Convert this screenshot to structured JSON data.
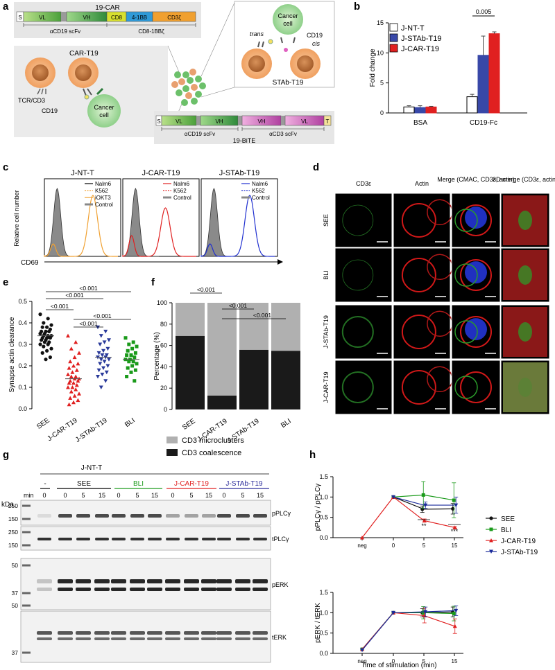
{
  "panels": {
    "a": {
      "letter": "a",
      "car_title": "19-CAR",
      "car_segments": [
        "S",
        "VL",
        "VH",
        "CD8",
        "4-1BB",
        "CD3ζ"
      ],
      "car_spans": [
        "αCD19 scFv",
        "CD8-1BBζ"
      ],
      "car_cell_title": "CAR-T19",
      "tcr_label": "TCR/CD3",
      "cd19_label": "CD19",
      "cancer_label": [
        "Cancer",
        "cell"
      ],
      "inset_trans": "trans",
      "inset_cis": "cis",
      "inset_cd19": "CD19",
      "inset_cancer": [
        "Cancer",
        "cell"
      ],
      "stab_title": "STAb-T19",
      "bite_segments": [
        "S",
        "VL",
        "VH",
        "VH",
        "VL",
        "T"
      ],
      "bite_spans": [
        "αCD19 scFv",
        "αCD3 scFv"
      ],
      "bite_title": "19-BiTE"
    },
    "b": {
      "letter": "b",
      "pvalue": "0.005"
    },
    "c": {
      "letter": "c",
      "ylabel": "Relative cell number",
      "xlabel": "CD69",
      "plots": [
        {
          "title": "J-NT-T",
          "legend": [
            "Nalm6",
            "K562",
            "iOKT3",
            "Control"
          ],
          "color": "#f0a030"
        },
        {
          "title": "J-CAR-T19",
          "legend": [
            "Nalm6",
            "K562",
            "Control"
          ],
          "color": "#e02020"
        },
        {
          "title": "J-STAb-T19",
          "legend": [
            "Nalm6",
            "K562",
            "Control"
          ],
          "color": "#2030d0"
        }
      ]
    },
    "d": {
      "letter": "d",
      "columns": [
        "CD3ε",
        "Actin",
        "Merge (CMAC, CD3ε, actin)",
        "3D merge (CD3ε, actin)"
      ],
      "rows": [
        "SEE",
        "BLI",
        "J-STAb-T19",
        "J-CAR-T19"
      ]
    },
    "e": {
      "letter": "e",
      "pvals": [
        "<0.001",
        "<0.001",
        "<0.001",
        "<0.001",
        "<0.001"
      ]
    },
    "f": {
      "letter": "f",
      "pvals": [
        "<0.001",
        "<0.001",
        "<0.001"
      ],
      "legend": [
        "CD3 microclusters",
        "CD3 coalescence"
      ]
    },
    "g": {
      "letter": "g",
      "group_title": "J-NT-T",
      "groups": [
        "-",
        "SEE",
        "BLI",
        "J-CAR-T19",
        "J-STAb-T19"
      ],
      "lane_times": [
        "0",
        "0",
        "5",
        "15",
        "0",
        "5",
        "15",
        "0",
        "5",
        "15",
        "0",
        "5",
        "15"
      ],
      "kda": "kDa",
      "min": "min",
      "markers": [
        {
          "blot": 0,
          "values": [
            "250",
            "150"
          ]
        },
        {
          "blot": 1,
          "values": [
            "250",
            "150"
          ]
        },
        {
          "blot": 2,
          "values": [
            "50",
            "37"
          ]
        },
        {
          "blot": 3,
          "values": [
            "50",
            "37"
          ]
        }
      ],
      "blots": [
        "pPLCγ",
        "tPLCγ",
        "pERK",
        "tERK"
      ]
    },
    "h": {
      "letter": "h",
      "sig": [
        "**",
        "***"
      ]
    }
  },
  "chart_data": [
    {
      "type": "bar",
      "panel": "b",
      "categories": [
        "BSA",
        "CD19-Fc"
      ],
      "series": [
        {
          "name": "J-NT-T",
          "values": [
            1.0,
            2.7
          ],
          "errors": [
            0.2,
            0.4
          ],
          "color": "#ffffff"
        },
        {
          "name": "J-STAb-T19",
          "values": [
            0.9,
            9.6
          ],
          "errors": [
            0.3,
            3.2
          ],
          "color": "#3848a8"
        },
        {
          "name": "J-CAR-T19",
          "values": [
            1.0,
            13.2
          ],
          "errors": [
            0.1,
            0.3
          ],
          "color": "#e02020"
        }
      ],
      "ylabel": "Fold change",
      "ylim": [
        0,
        15
      ],
      "yticks": [
        0,
        5,
        10,
        15
      ]
    },
    {
      "type": "scatter",
      "panel": "e",
      "categories": [
        "SEE",
        "J-CAR-T19",
        "J-STAb-T19",
        "BLI"
      ],
      "ylabel": "Synapse actin clearance",
      "ylim": [
        0.0,
        0.5
      ],
      "yticks": [
        0.0,
        0.1,
        0.2,
        0.3,
        0.4,
        0.5
      ],
      "medians": [
        0.34,
        0.14,
        0.24,
        0.23
      ],
      "points": [
        [
          0.44,
          0.42,
          0.4,
          0.39,
          0.38,
          0.38,
          0.37,
          0.36,
          0.36,
          0.36,
          0.35,
          0.35,
          0.34,
          0.34,
          0.34,
          0.33,
          0.33,
          0.33,
          0.32,
          0.32,
          0.31,
          0.31,
          0.3,
          0.3,
          0.29,
          0.28,
          0.27,
          0.26,
          0.24,
          0.23
        ],
        [
          0.34,
          0.31,
          0.28,
          0.26,
          0.24,
          0.22,
          0.21,
          0.2,
          0.19,
          0.18,
          0.17,
          0.16,
          0.15,
          0.15,
          0.14,
          0.14,
          0.13,
          0.13,
          0.12,
          0.12,
          0.11,
          0.1,
          0.1,
          0.09,
          0.08,
          0.07,
          0.06,
          0.05,
          0.04,
          0.03,
          0.02
        ],
        [
          0.38,
          0.36,
          0.34,
          0.32,
          0.31,
          0.3,
          0.28,
          0.27,
          0.26,
          0.25,
          0.25,
          0.24,
          0.24,
          0.23,
          0.23,
          0.22,
          0.21,
          0.2,
          0.19,
          0.18,
          0.17,
          0.16,
          0.15,
          0.13,
          0.1
        ],
        [
          0.33,
          0.31,
          0.3,
          0.29,
          0.28,
          0.27,
          0.26,
          0.25,
          0.25,
          0.24,
          0.23,
          0.23,
          0.22,
          0.22,
          0.21,
          0.2,
          0.19,
          0.18,
          0.17,
          0.15,
          0.13
        ]
      ],
      "colors": [
        "#111111",
        "#e02020",
        "#2a3a9a",
        "#1a9a1a"
      ]
    },
    {
      "type": "bar",
      "panel": "f",
      "categories": [
        "SEE",
        "J-CAR-T19",
        "J-STAb-T19",
        "BLI"
      ],
      "series": [
        {
          "name": "CD3 coalescence",
          "values": [
            69,
            13,
            56,
            55
          ],
          "color": "#1a1a1a"
        },
        {
          "name": "CD3 microclusters",
          "values": [
            31,
            87,
            44,
            45
          ],
          "color": "#b0b0b0"
        }
      ],
      "ylabel": "Percentage (%)",
      "ylim": [
        0,
        100
      ],
      "yticks": [
        0,
        20,
        40,
        60,
        80,
        100
      ]
    },
    {
      "type": "line",
      "panel": "h-top",
      "x": [
        "neg",
        "0",
        "5",
        "15"
      ],
      "xlabel": "",
      "ylabel": "pPLCγ / pPLCγ",
      "ylim": [
        0.0,
        1.5
      ],
      "yticks": [
        0.0,
        0.5,
        1.0,
        1.5
      ],
      "series": [
        {
          "name": "SEE",
          "values": [
            null,
            1.0,
            0.7,
            0.71
          ],
          "errors": [
            0,
            0,
            0.08,
            0.13
          ],
          "color": "#111111",
          "marker": "circle"
        },
        {
          "name": "BLI",
          "values": [
            null,
            1.0,
            1.05,
            0.92
          ],
          "errors": [
            0,
            0,
            0.33,
            0.43
          ],
          "color": "#1a9a1a",
          "marker": "square"
        },
        {
          "name": "J-CAR-T19",
          "values": [
            0.0,
            1.0,
            0.42,
            0.25
          ],
          "errors": [
            0,
            0,
            0.04,
            0.02
          ],
          "color": "#e02020",
          "marker": "triangle"
        },
        {
          "name": "J-STAb-T19",
          "values": [
            null,
            1.0,
            0.8,
            0.8
          ],
          "errors": [
            0,
            0,
            0.08,
            0.2
          ],
          "color": "#1a2a9a",
          "marker": "triangle-down"
        }
      ]
    },
    {
      "type": "line",
      "panel": "h-bottom",
      "x": [
        "neg",
        "0",
        "5",
        "15"
      ],
      "xlabel": "Time of stimulation (min)",
      "ylabel": "pERK / tERK",
      "ylim": [
        0.0,
        1.5
      ],
      "yticks": [
        0.0,
        0.5,
        1.0,
        1.5
      ],
      "series": [
        {
          "name": "SEE",
          "values": [
            0.1,
            1.0,
            1.0,
            1.02
          ],
          "errors": [
            0,
            0,
            0.1,
            0.12
          ],
          "color": "#111111",
          "marker": "circle"
        },
        {
          "name": "BLI",
          "values": [
            0.1,
            1.0,
            1.0,
            0.98
          ],
          "errors": [
            0,
            0,
            0.15,
            0.18
          ],
          "color": "#1a9a1a",
          "marker": "square"
        },
        {
          "name": "J-CAR-T19",
          "values": [
            0.1,
            1.0,
            0.93,
            0.67
          ],
          "errors": [
            0,
            0,
            0.18,
            0.18
          ],
          "color": "#e02020",
          "marker": "triangle"
        },
        {
          "name": "J-STAb-T19",
          "values": [
            0.08,
            1.0,
            1.02,
            1.05
          ],
          "errors": [
            0,
            0,
            0.12,
            0.12
          ],
          "color": "#1a2a9a",
          "marker": "triangle-down"
        }
      ]
    }
  ]
}
